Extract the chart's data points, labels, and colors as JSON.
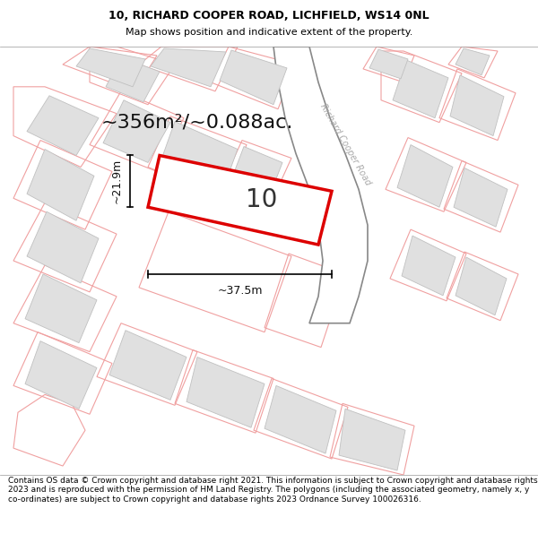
{
  "title_line1": "10, RICHARD COOPER ROAD, LICHFIELD, WS14 0NL",
  "title_line2": "Map shows position and indicative extent of the property.",
  "area_text": "~356m²/~0.088ac.",
  "label_number": "10",
  "dim_width": "~37.5m",
  "dim_height": "~21.9m",
  "road_label": "Richard Cooper Road",
  "footer_text": "Contains OS data © Crown copyright and database right 2021. This information is subject to Crown copyright and database rights 2023 and is reproduced with the permission of HM Land Registry. The polygons (including the associated geometry, namely x, y co-ordinates) are subject to Crown copyright and database rights 2023 Ordnance Survey 100026316.",
  "bg_color": "#ffffff",
  "map_bg": "#ffffff",
  "plot_fill": "#ffffff",
  "plot_edge": "#dd0000",
  "parcel_edge": "#f0a0a0",
  "building_fill": "#e0e0e0",
  "building_edge": "#c0c0c0",
  "road_fill": "#ffffff",
  "road_edge": "#888888",
  "road_label_color": "#aaaaaa",
  "title_fontsize": 9,
  "subtitle_fontsize": 8,
  "area_fontsize": 16,
  "dim_fontsize": 9,
  "label_fontsize": 20,
  "footer_fontsize": 6.5
}
